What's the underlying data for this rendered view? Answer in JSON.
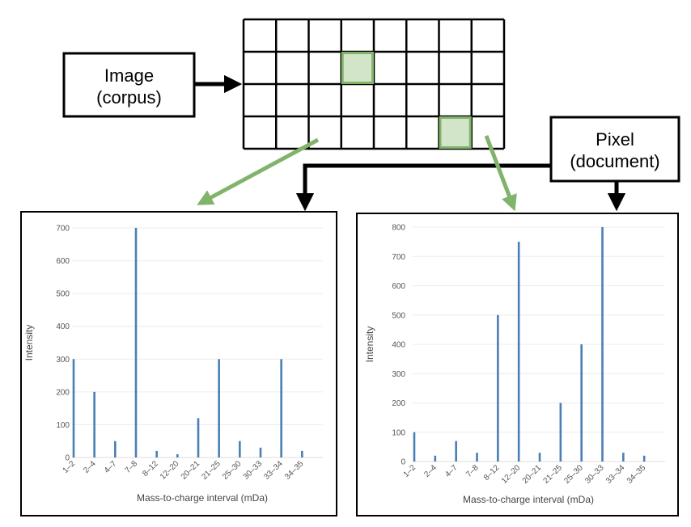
{
  "diagram": {
    "image_box": {
      "line1": "Image",
      "line2": "(corpus)"
    },
    "pixel_box": {
      "line1": "Pixel",
      "line2": "(document)"
    },
    "grid": {
      "cols": 8,
      "rows": 4,
      "highlighted_cells": [
        [
          1,
          3
        ],
        [
          3,
          6
        ]
      ]
    },
    "colors": {
      "highlight": "#82b36b",
      "bar": "#4a7fb5",
      "arrow": "#000000"
    }
  },
  "chart_data": [
    {
      "type": "bar",
      "categories": [
        "1–2",
        "2–4",
        "4–7",
        "7–8",
        "8–12",
        "12–20",
        "20–21",
        "21–25",
        "25–30",
        "30–33",
        "33–34",
        "34–35"
      ],
      "values": [
        300,
        200,
        50,
        700,
        20,
        10,
        120,
        300,
        50,
        30,
        300,
        20
      ],
      "xlabel": "Mass-to-charge interval (mDa)",
      "ylabel": "Intensity",
      "ylim": [
        0,
        700
      ],
      "yticks": [
        0,
        100,
        200,
        300,
        400,
        500,
        600,
        700
      ],
      "grid": true
    },
    {
      "type": "bar",
      "categories": [
        "1–2",
        "2–4",
        "4–7",
        "7–8",
        "8–12",
        "12–20",
        "20–21",
        "21–25",
        "25–30",
        "30–33",
        "33–34",
        "34–35"
      ],
      "values": [
        100,
        20,
        70,
        30,
        500,
        750,
        30,
        200,
        400,
        800,
        30,
        20
      ],
      "xlabel": "Mass-to-charge interval (mDa)",
      "ylabel": "Intensity",
      "ylim": [
        0,
        800
      ],
      "yticks": [
        0,
        100,
        200,
        300,
        400,
        500,
        600,
        700,
        800
      ],
      "grid": true
    }
  ]
}
